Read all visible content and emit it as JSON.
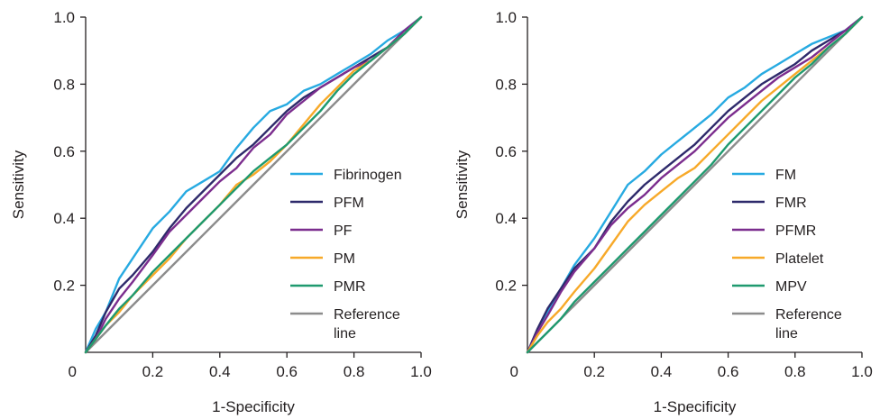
{
  "chart_data": [
    {
      "type": "line",
      "xlabel": "1-Specificity",
      "ylabel": "Sensitivity",
      "xlim": [
        0,
        1
      ],
      "ylim": [
        0,
        1
      ],
      "xticks": [
        "0",
        "0.2",
        "0.4",
        "0.6",
        "0.8",
        "1.0"
      ],
      "yticks": [
        "0.2",
        "0.4",
        "0.6",
        "0.8",
        "1.0"
      ],
      "legend_position": "bottom-right",
      "series": [
        {
          "name": "Fibrinogen",
          "color": "#27aae1",
          "x": [
            0,
            0.03,
            0.06,
            0.1,
            0.14,
            0.2,
            0.25,
            0.3,
            0.35,
            0.4,
            0.45,
            0.5,
            0.55,
            0.6,
            0.65,
            0.7,
            0.75,
            0.8,
            0.85,
            0.9,
            0.95,
            1.0
          ],
          "y": [
            0,
            0.07,
            0.12,
            0.22,
            0.28,
            0.37,
            0.42,
            0.48,
            0.51,
            0.54,
            0.61,
            0.67,
            0.72,
            0.74,
            0.78,
            0.8,
            0.83,
            0.86,
            0.89,
            0.93,
            0.96,
            1.0
          ]
        },
        {
          "name": "PFM",
          "color": "#2e2a6b",
          "x": [
            0,
            0.03,
            0.06,
            0.1,
            0.14,
            0.2,
            0.25,
            0.3,
            0.35,
            0.4,
            0.45,
            0.5,
            0.55,
            0.6,
            0.65,
            0.7,
            0.75,
            0.8,
            0.85,
            0.9,
            0.95,
            1.0
          ],
          "y": [
            0,
            0.05,
            0.12,
            0.19,
            0.23,
            0.3,
            0.37,
            0.43,
            0.48,
            0.53,
            0.58,
            0.62,
            0.67,
            0.72,
            0.76,
            0.79,
            0.82,
            0.85,
            0.88,
            0.91,
            0.95,
            1.0
          ]
        },
        {
          "name": "PF",
          "color": "#7b2d8e",
          "x": [
            0,
            0.03,
            0.06,
            0.1,
            0.14,
            0.2,
            0.25,
            0.3,
            0.35,
            0.4,
            0.45,
            0.5,
            0.55,
            0.6,
            0.65,
            0.7,
            0.75,
            0.8,
            0.85,
            0.9,
            0.95,
            1.0
          ],
          "y": [
            0,
            0.04,
            0.1,
            0.16,
            0.21,
            0.29,
            0.36,
            0.41,
            0.46,
            0.51,
            0.55,
            0.61,
            0.65,
            0.71,
            0.75,
            0.79,
            0.82,
            0.85,
            0.87,
            0.91,
            0.96,
            1.0
          ]
        },
        {
          "name": "PM",
          "color": "#f7a929",
          "x": [
            0,
            0.03,
            0.06,
            0.1,
            0.14,
            0.2,
            0.25,
            0.3,
            0.35,
            0.4,
            0.45,
            0.5,
            0.55,
            0.6,
            0.65,
            0.7,
            0.75,
            0.8,
            0.85,
            0.9,
            0.95,
            1.0
          ],
          "y": [
            0,
            0.04,
            0.08,
            0.12,
            0.17,
            0.23,
            0.28,
            0.34,
            0.39,
            0.44,
            0.5,
            0.53,
            0.57,
            0.62,
            0.68,
            0.74,
            0.79,
            0.84,
            0.87,
            0.91,
            0.95,
            1.0
          ]
        },
        {
          "name": "PMR",
          "color": "#1f9a6f",
          "x": [
            0,
            0.03,
            0.06,
            0.1,
            0.14,
            0.2,
            0.25,
            0.3,
            0.35,
            0.4,
            0.45,
            0.5,
            0.55,
            0.6,
            0.65,
            0.7,
            0.75,
            0.8,
            0.85,
            0.9,
            0.95,
            1.0
          ],
          "y": [
            0,
            0.04,
            0.08,
            0.13,
            0.17,
            0.24,
            0.29,
            0.34,
            0.39,
            0.44,
            0.49,
            0.54,
            0.58,
            0.62,
            0.67,
            0.72,
            0.78,
            0.83,
            0.87,
            0.91,
            0.95,
            1.0
          ]
        },
        {
          "name": "Reference line",
          "color": "#8c8c8c",
          "x": [
            0,
            1
          ],
          "y": [
            0,
            1
          ]
        }
      ]
    },
    {
      "type": "line",
      "xlabel": "1-Specificity",
      "ylabel": "Sensitivity",
      "xlim": [
        0,
        1
      ],
      "ylim": [
        0,
        1
      ],
      "xticks": [
        "0",
        "0.2",
        "0.4",
        "0.6",
        "0.8",
        "1.0"
      ],
      "yticks": [
        "0.2",
        "0.4",
        "0.6",
        "0.8",
        "1.0"
      ],
      "legend_position": "bottom-right",
      "series": [
        {
          "name": "FM",
          "color": "#27aae1",
          "x": [
            0,
            0.03,
            0.06,
            0.1,
            0.14,
            0.2,
            0.25,
            0.3,
            0.35,
            0.4,
            0.45,
            0.5,
            0.55,
            0.6,
            0.65,
            0.7,
            0.75,
            0.8,
            0.85,
            0.9,
            0.95,
            1.0
          ],
          "y": [
            0,
            0.06,
            0.12,
            0.19,
            0.26,
            0.34,
            0.42,
            0.5,
            0.54,
            0.59,
            0.63,
            0.67,
            0.71,
            0.76,
            0.79,
            0.83,
            0.86,
            0.89,
            0.92,
            0.94,
            0.96,
            1.0
          ]
        },
        {
          "name": "FMR",
          "color": "#2e2a6b",
          "x": [
            0,
            0.03,
            0.06,
            0.1,
            0.14,
            0.2,
            0.25,
            0.3,
            0.35,
            0.4,
            0.45,
            0.5,
            0.55,
            0.6,
            0.65,
            0.7,
            0.75,
            0.8,
            0.85,
            0.9,
            0.95,
            1.0
          ],
          "y": [
            0,
            0.07,
            0.13,
            0.19,
            0.25,
            0.31,
            0.39,
            0.45,
            0.5,
            0.54,
            0.58,
            0.62,
            0.67,
            0.72,
            0.76,
            0.8,
            0.83,
            0.86,
            0.9,
            0.93,
            0.96,
            1.0
          ]
        },
        {
          "name": "PFMR",
          "color": "#7b2d8e",
          "x": [
            0,
            0.03,
            0.06,
            0.1,
            0.14,
            0.2,
            0.25,
            0.3,
            0.35,
            0.4,
            0.45,
            0.5,
            0.55,
            0.6,
            0.65,
            0.7,
            0.75,
            0.8,
            0.85,
            0.9,
            0.95,
            1.0
          ],
          "y": [
            0,
            0.06,
            0.11,
            0.18,
            0.24,
            0.31,
            0.38,
            0.43,
            0.47,
            0.52,
            0.56,
            0.6,
            0.65,
            0.7,
            0.74,
            0.78,
            0.82,
            0.85,
            0.88,
            0.92,
            0.96,
            1.0
          ]
        },
        {
          "name": "Platelet",
          "color": "#f7a929",
          "x": [
            0,
            0.03,
            0.06,
            0.1,
            0.14,
            0.2,
            0.25,
            0.3,
            0.35,
            0.4,
            0.45,
            0.5,
            0.55,
            0.6,
            0.65,
            0.7,
            0.75,
            0.8,
            0.85,
            0.9,
            0.95,
            1.0
          ],
          "y": [
            0,
            0.05,
            0.09,
            0.13,
            0.18,
            0.25,
            0.32,
            0.39,
            0.44,
            0.48,
            0.52,
            0.55,
            0.6,
            0.65,
            0.7,
            0.75,
            0.79,
            0.83,
            0.87,
            0.91,
            0.95,
            1.0
          ]
        },
        {
          "name": "MPV",
          "color": "#1f9a6f",
          "x": [
            0,
            0.03,
            0.06,
            0.1,
            0.14,
            0.2,
            0.25,
            0.3,
            0.35,
            0.4,
            0.45,
            0.5,
            0.55,
            0.6,
            0.65,
            0.7,
            0.75,
            0.8,
            0.85,
            0.9,
            0.95,
            1.0
          ],
          "y": [
            0,
            0.03,
            0.06,
            0.1,
            0.15,
            0.21,
            0.26,
            0.31,
            0.36,
            0.41,
            0.46,
            0.51,
            0.56,
            0.62,
            0.67,
            0.72,
            0.77,
            0.82,
            0.86,
            0.91,
            0.95,
            1.0
          ]
        },
        {
          "name": "Reference line",
          "color": "#8c8c8c",
          "x": [
            0,
            1
          ],
          "y": [
            0,
            1
          ]
        }
      ]
    }
  ]
}
